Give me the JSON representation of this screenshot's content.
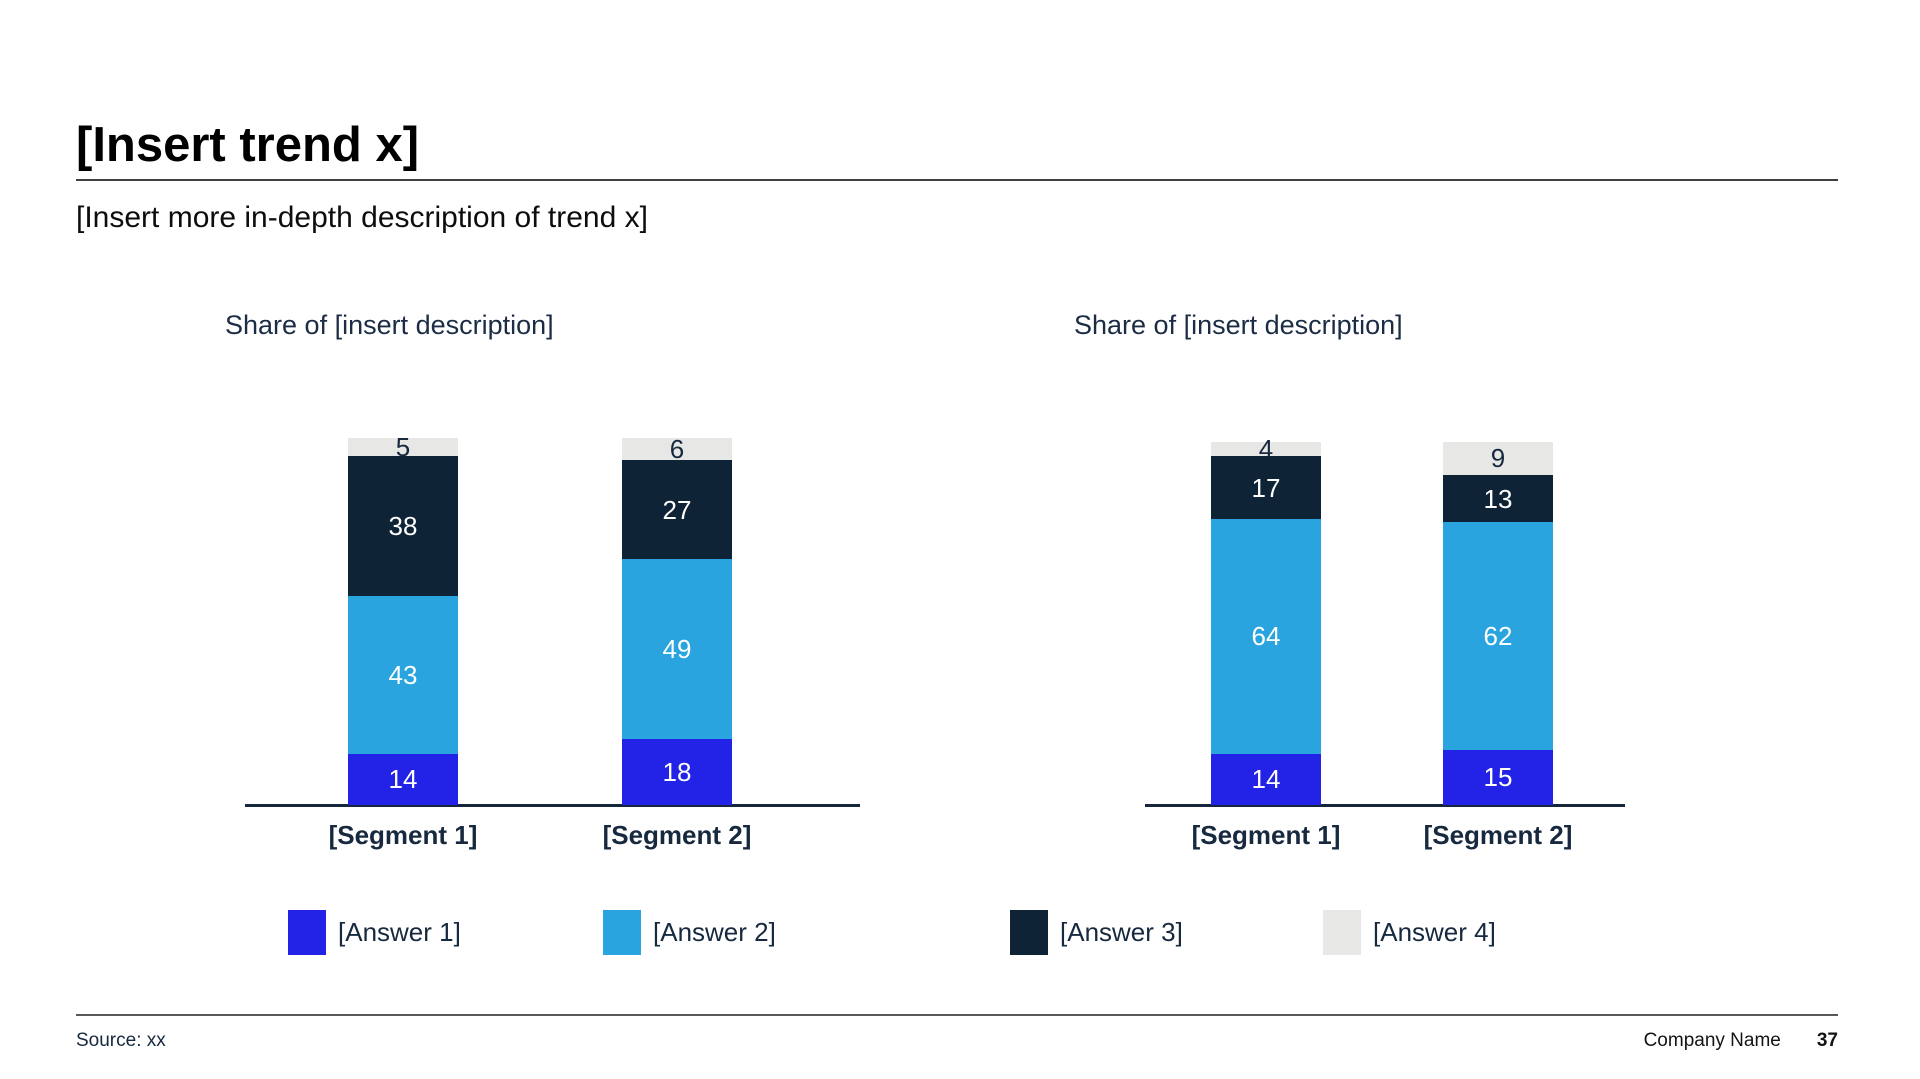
{
  "slide": {
    "title": "[Insert trend x]",
    "subtitle": "[Insert more in-depth description of trend x]"
  },
  "footer": {
    "source": "Source: xx",
    "company": "Company Name",
    "page_number": "37"
  },
  "colors": {
    "answer1_blue": "#2323e8",
    "answer2_light_blue": "#29a4de",
    "answer3_dark_navy": "#0f2337",
    "answer4_light_gray": "#e7e7e5",
    "dark_text": "#17293e",
    "axis_line": "#16273c"
  },
  "legend": [
    {
      "label": "[Answer 1]",
      "color": "#2323e8"
    },
    {
      "label": "[Answer 2]",
      "color": "#29a4de"
    },
    {
      "label": "[Answer 3]",
      "color": "#0f2337"
    },
    {
      "label": "[Answer 4]",
      "color": "#e7e7e5"
    }
  ],
  "chart_data": [
    {
      "type": "bar",
      "stacked": true,
      "title": "Share of [insert description]",
      "ylabel": "",
      "xlabel": "",
      "ylim": [
        0,
        100
      ],
      "grid": false,
      "value_labels": true,
      "legend_position": "bottom-shared",
      "categories": [
        "[Segment 1]",
        "[Segment 2]"
      ],
      "series": [
        {
          "name": "[Answer 1]",
          "color": "#2323e8",
          "label_color": "#ffffff",
          "values": [
            14,
            18
          ]
        },
        {
          "name": "[Answer 2]",
          "color": "#29a4de",
          "label_color": "#ffffff",
          "values": [
            43,
            49
          ]
        },
        {
          "name": "[Answer 3]",
          "color": "#0f2337",
          "label_color": "#ffffff",
          "values": [
            38,
            27
          ]
        },
        {
          "name": "[Answer 4]",
          "color": "#e7e7e5",
          "label_color": "#17293e",
          "values": [
            5,
            6
          ]
        }
      ]
    },
    {
      "type": "bar",
      "stacked": true,
      "title": "Share of [insert description]",
      "ylabel": "",
      "xlabel": "",
      "ylim": [
        0,
        100
      ],
      "grid": false,
      "value_labels": true,
      "legend_position": "bottom-shared",
      "categories": [
        "[Segment 1]",
        "[Segment 2]"
      ],
      "series": [
        {
          "name": "[Answer 1]",
          "color": "#2323e8",
          "label_color": "#ffffff",
          "values": [
            14,
            15
          ]
        },
        {
          "name": "[Answer 2]",
          "color": "#29a4de",
          "label_color": "#ffffff",
          "values": [
            64,
            62
          ]
        },
        {
          "name": "[Answer 3]",
          "color": "#0f2337",
          "label_color": "#ffffff",
          "values": [
            17,
            13
          ]
        },
        {
          "name": "[Answer 4]",
          "color": "#e7e7e5",
          "label_color": "#17293e",
          "values": [
            4,
            9
          ]
        }
      ]
    }
  ]
}
